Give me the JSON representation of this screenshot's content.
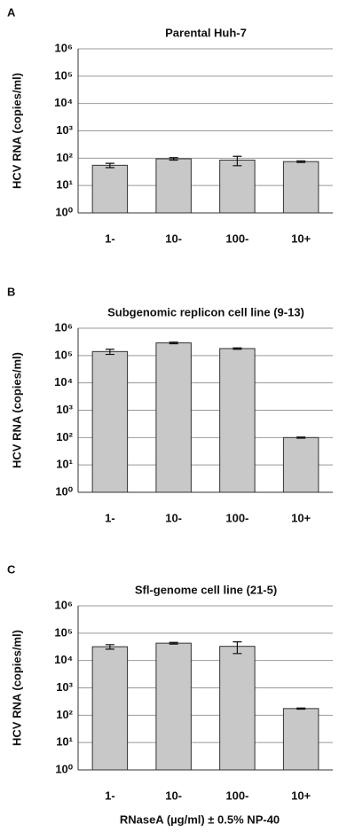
{
  "chart_data": [
    {
      "type": "bar",
      "panel_label": "A",
      "title": "Parental Huh-7",
      "ylabel": "HCV RNA (copies/ml)",
      "categories": [
        "1-",
        "10-",
        "100-",
        "10+"
      ],
      "values": [
        55,
        95,
        85,
        75
      ],
      "errors": [
        10,
        10,
        32,
        5
      ],
      "color": "#c8c8c8",
      "log_scale": true,
      "grid": true,
      "ylim": [
        1,
        1000000
      ],
      "yticks": [
        {
          "value": 1,
          "label": "10⁰"
        },
        {
          "value": 10,
          "label": "10¹"
        },
        {
          "value": 100,
          "label": "10²"
        },
        {
          "value": 1000,
          "label": "10³"
        },
        {
          "value": 10000,
          "label": "10⁴"
        },
        {
          "value": 100000,
          "label": "10⁵"
        },
        {
          "value": 1000000,
          "label": "10⁶"
        }
      ]
    },
    {
      "type": "bar",
      "panel_label": "B",
      "title": "Subgenomic replicon  cell line (9-13)",
      "ylabel": "HCV RNA (copies/ml)",
      "categories": [
        "1-",
        "10-",
        "100-",
        "10+"
      ],
      "values": [
        140000,
        290000,
        180000,
        100
      ],
      "errors": [
        30000,
        20000,
        10000,
        5
      ],
      "color": "#c8c8c8",
      "log_scale": true,
      "grid": true,
      "ylim": [
        1,
        1000000
      ],
      "yticks": [
        {
          "value": 1,
          "label": "10⁰"
        },
        {
          "value": 10,
          "label": "10¹"
        },
        {
          "value": 100,
          "label": "10²"
        },
        {
          "value": 1000,
          "label": "10³"
        },
        {
          "value": 10000,
          "label": "10⁴"
        },
        {
          "value": 100000,
          "label": "10⁵"
        },
        {
          "value": 1000000,
          "label": "10⁶"
        }
      ]
    },
    {
      "type": "bar",
      "panel_label": "C",
      "title": "Sfl-genome cell line (21-5)",
      "ylabel": "HCV RNA (copies/ml)",
      "xlabel": "RNaseA (µg/ml) ± 0.5% NP-40",
      "categories": [
        "1-",
        "10-",
        "100-",
        "10+"
      ],
      "values": [
        32000,
        43000,
        33000,
        175
      ],
      "errors": [
        6000,
        3000,
        15000,
        8
      ],
      "color": "#c8c8c8",
      "log_scale": true,
      "grid": true,
      "ylim": [
        1,
        1000000
      ],
      "yticks": [
        {
          "value": 1,
          "label": "10⁰"
        },
        {
          "value": 10,
          "label": "10¹"
        },
        {
          "value": 100,
          "label": "10²"
        },
        {
          "value": 1000,
          "label": "10³"
        },
        {
          "value": 10000,
          "label": "10⁴"
        },
        {
          "value": 100000,
          "label": "10⁵"
        },
        {
          "value": 1000000,
          "label": "10⁶"
        }
      ]
    }
  ]
}
